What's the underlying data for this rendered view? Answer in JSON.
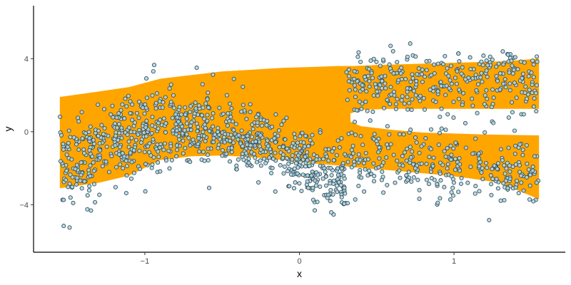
{
  "chart_data": {
    "type": "scatter",
    "xlabel": "x",
    "ylabel": "y",
    "xlim": [
      -1.72,
      1.72
    ],
    "ylim": [
      -6.6,
      6.9
    ],
    "x_ticks": [
      {
        "value": -1,
        "label": "−1"
      },
      {
        "value": 0,
        "label": "0"
      },
      {
        "value": 1,
        "label": "1"
      }
    ],
    "y_ticks": [
      {
        "value": -4,
        "label": "−4"
      },
      {
        "value": 0,
        "label": "0"
      },
      {
        "value": 4,
        "label": "4"
      }
    ],
    "grid": false,
    "colors": {
      "band": "#FFA500",
      "point_fill": "#ADD8E6",
      "point_stroke": "#3A4F5A"
    },
    "band": {
      "x": [
        -1.55,
        -1.3,
        -1.1,
        -0.9,
        -0.7,
        -0.5,
        -0.3,
        -0.1,
        0.1,
        0.25,
        0.35,
        0.5,
        0.7,
        0.9,
        1.1,
        1.3,
        1.55
      ],
      "upper": [
        1.9,
        2.2,
        2.45,
        2.9,
        3.1,
        3.3,
        3.4,
        3.5,
        3.55,
        3.6,
        3.6,
        3.65,
        3.7,
        3.75,
        3.8,
        3.85,
        4.0
      ],
      "lower": [
        -3.1,
        -2.8,
        -2.4,
        -1.55,
        -1.35,
        -1.3,
        -1.4,
        -1.55,
        -1.75,
        -1.85,
        -1.95,
        -2.05,
        -2.2,
        -2.35,
        -2.55,
        -2.8,
        -3.7
      ],
      "gap": {
        "x": [
          0.33,
          0.4,
          0.6,
          0.8,
          1.0,
          1.2,
          1.4,
          1.55
        ],
        "upper": [
          1.0,
          1.2,
          1.25,
          1.25,
          1.25,
          1.25,
          1.25,
          1.25
        ],
        "lower": [
          0.55,
          0.3,
          0.1,
          -0.05,
          -0.1,
          -0.15,
          -0.18,
          -0.2
        ]
      }
    },
    "scatter_model": {
      "n": 1500,
      "x_range": [
        -1.55,
        1.55
      ],
      "description_branches": "upper and lower branches for x > 0.3"
    }
  }
}
